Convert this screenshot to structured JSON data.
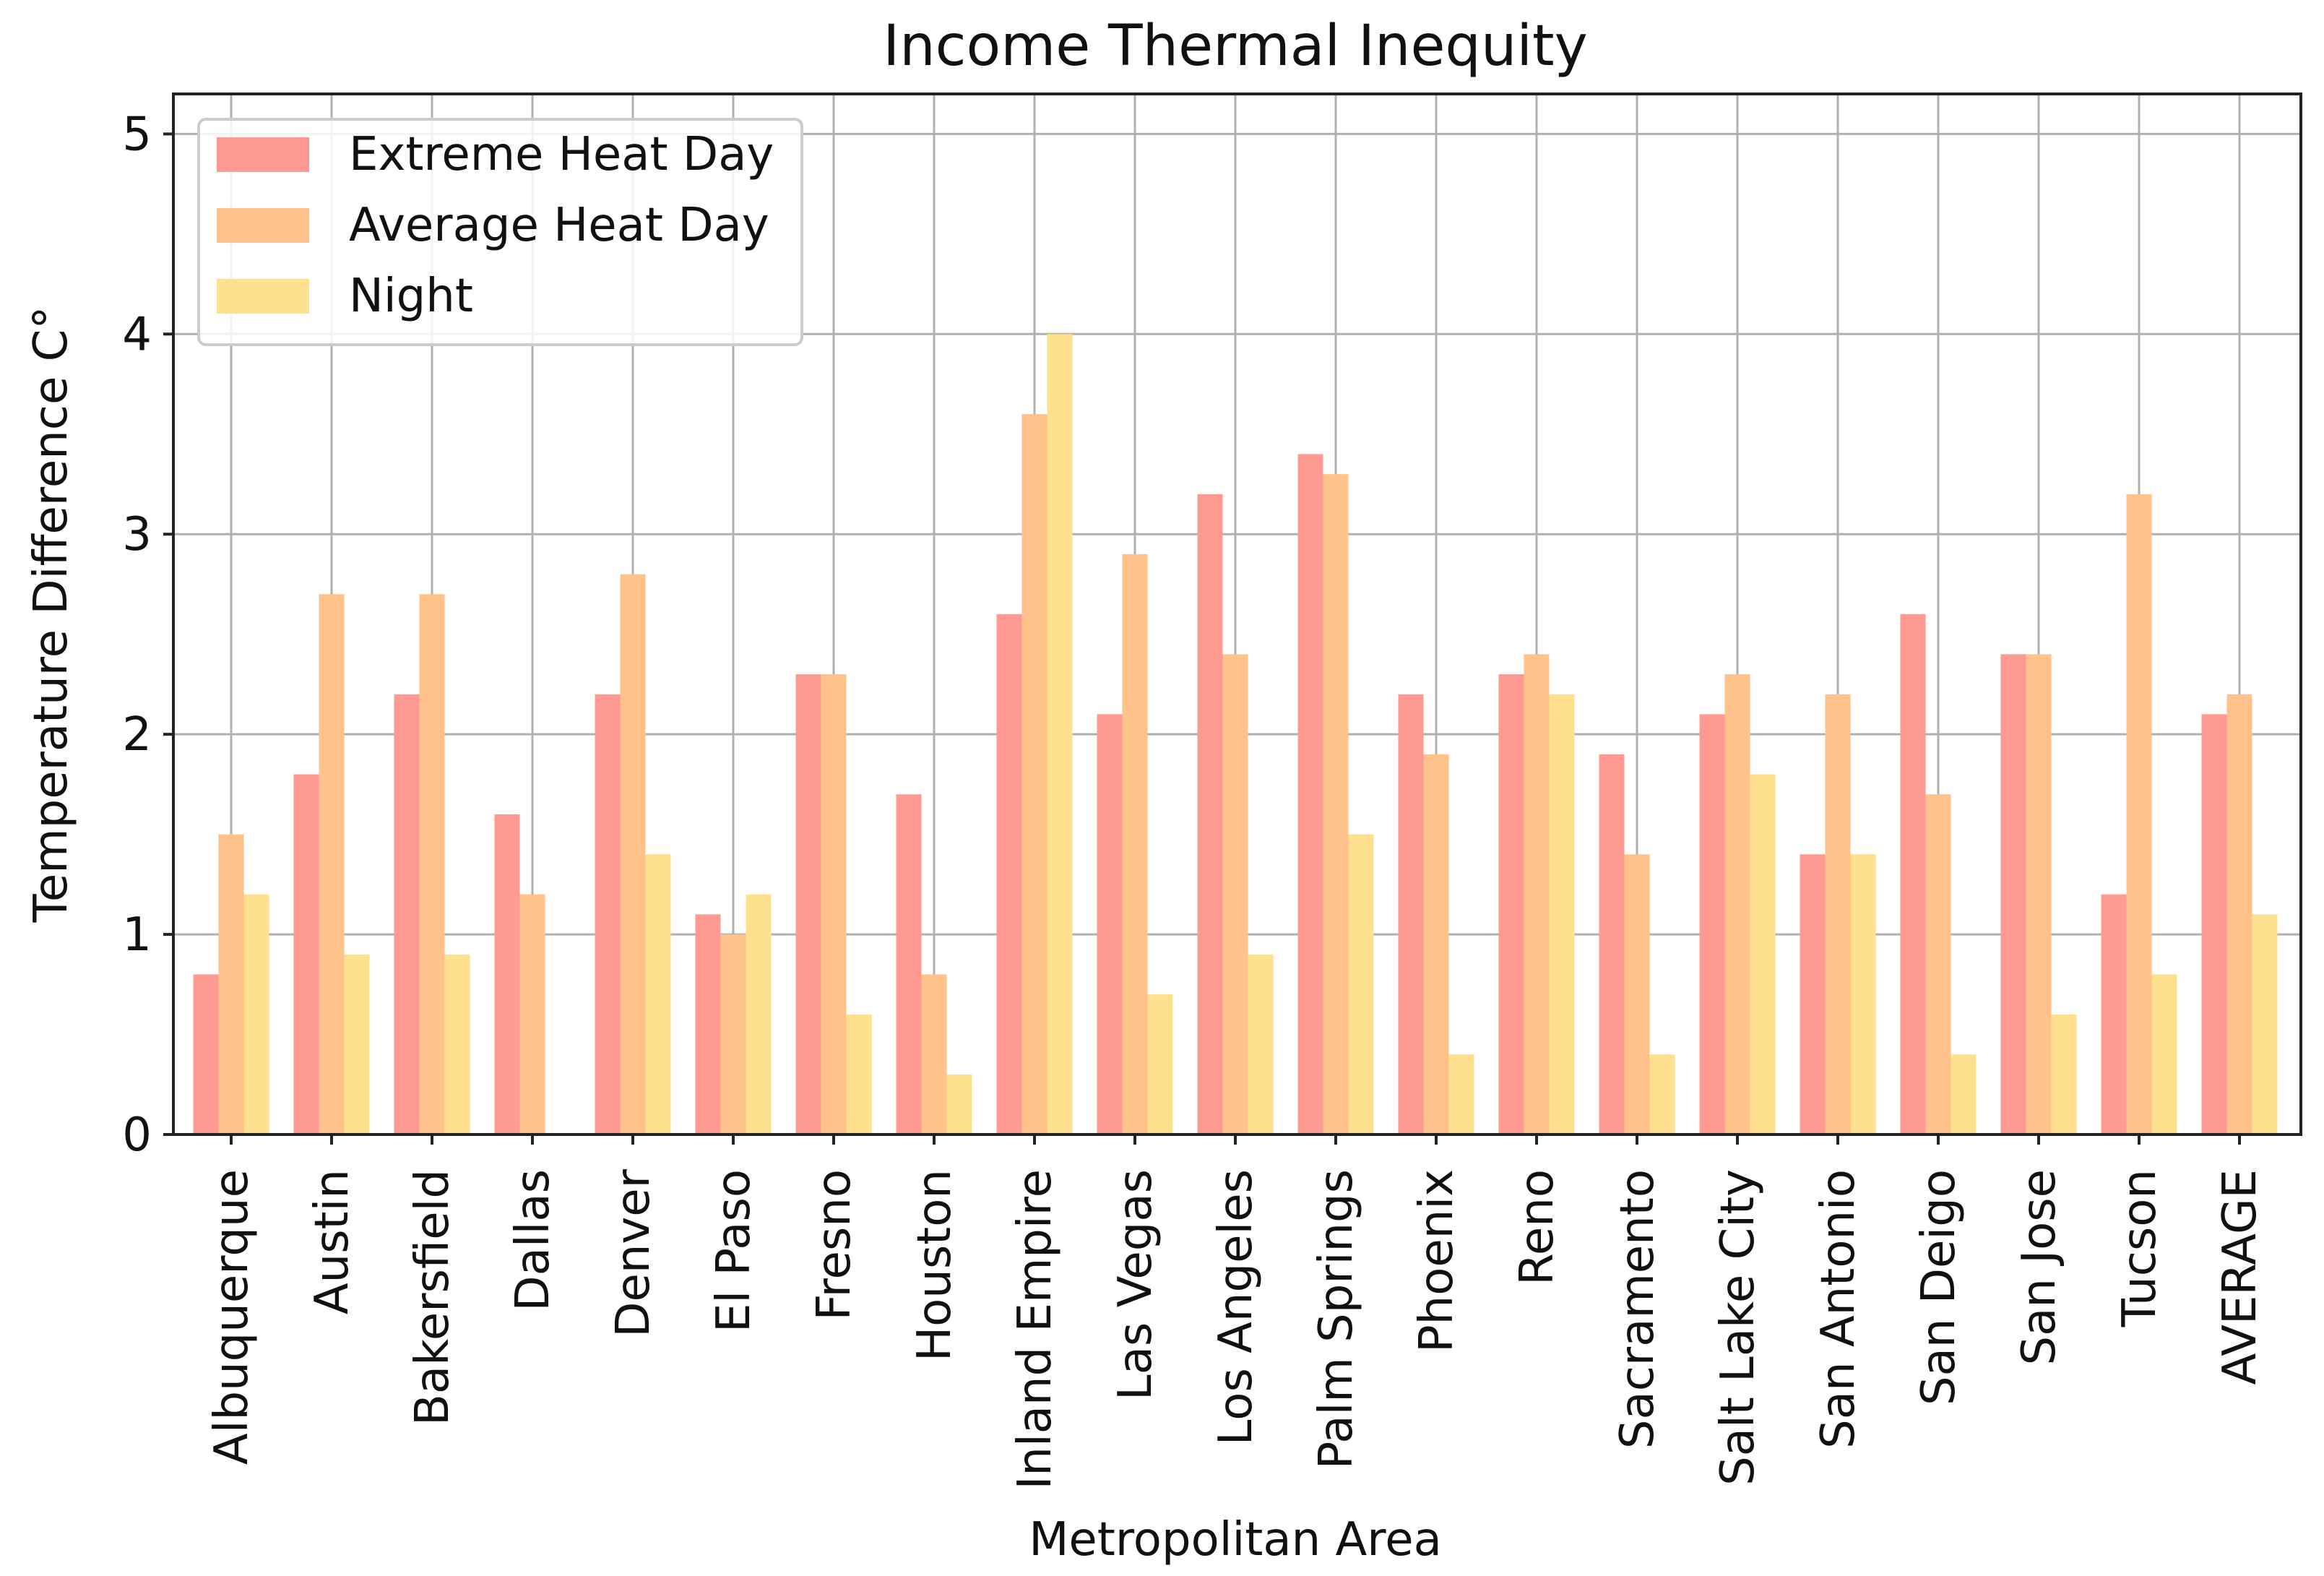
{
  "chart_data": {
    "type": "bar",
    "title": "Income Thermal Inequity",
    "xlabel": "Metropolitan Area",
    "ylabel": "Temperature Difference C°",
    "ylim": [
      0,
      5.2
    ],
    "yticks": [
      0,
      1,
      2,
      3,
      4,
      5
    ],
    "grid": true,
    "legend_position": "top-left",
    "categories": [
      "Albuquerque",
      "Austin",
      "Bakersfield",
      "Dallas",
      "Denver",
      "El Paso",
      "Fresno",
      "Houston",
      "Inland Empire",
      "Las Vegas",
      "Los Angeles",
      "Palm Springs",
      "Phoenix",
      "Reno",
      "Sacramento",
      "Salt Lake City",
      "San Antonio",
      "San Deigo",
      "San Jose",
      "Tucson",
      "AVERAGE"
    ],
    "series": [
      {
        "name": "Extreme Heat Day",
        "color": "#ff9a92",
        "values": [
          0.8,
          1.8,
          2.2,
          1.6,
          2.2,
          1.1,
          2.3,
          1.7,
          2.6,
          2.1,
          3.2,
          3.4,
          2.2,
          2.3,
          1.9,
          2.1,
          1.4,
          2.6,
          2.4,
          1.2,
          2.1
        ]
      },
      {
        "name": "Average Heat Day",
        "color": "#ffc28a",
        "values": [
          1.5,
          2.7,
          2.7,
          1.2,
          2.8,
          1.0,
          2.3,
          0.8,
          3.6,
          2.9,
          2.4,
          3.3,
          1.9,
          2.4,
          1.4,
          2.3,
          2.2,
          1.7,
          2.4,
          3.2,
          2.2
        ]
      },
      {
        "name": "Night",
        "color": "#ffe08f",
        "values": [
          1.2,
          0.9,
          0.9,
          0.0,
          1.4,
          1.2,
          0.6,
          0.3,
          4.0,
          0.7,
          0.9,
          1.5,
          0.4,
          2.2,
          0.4,
          1.8,
          1.4,
          0.4,
          0.6,
          0.8,
          1.1
        ]
      }
    ]
  }
}
